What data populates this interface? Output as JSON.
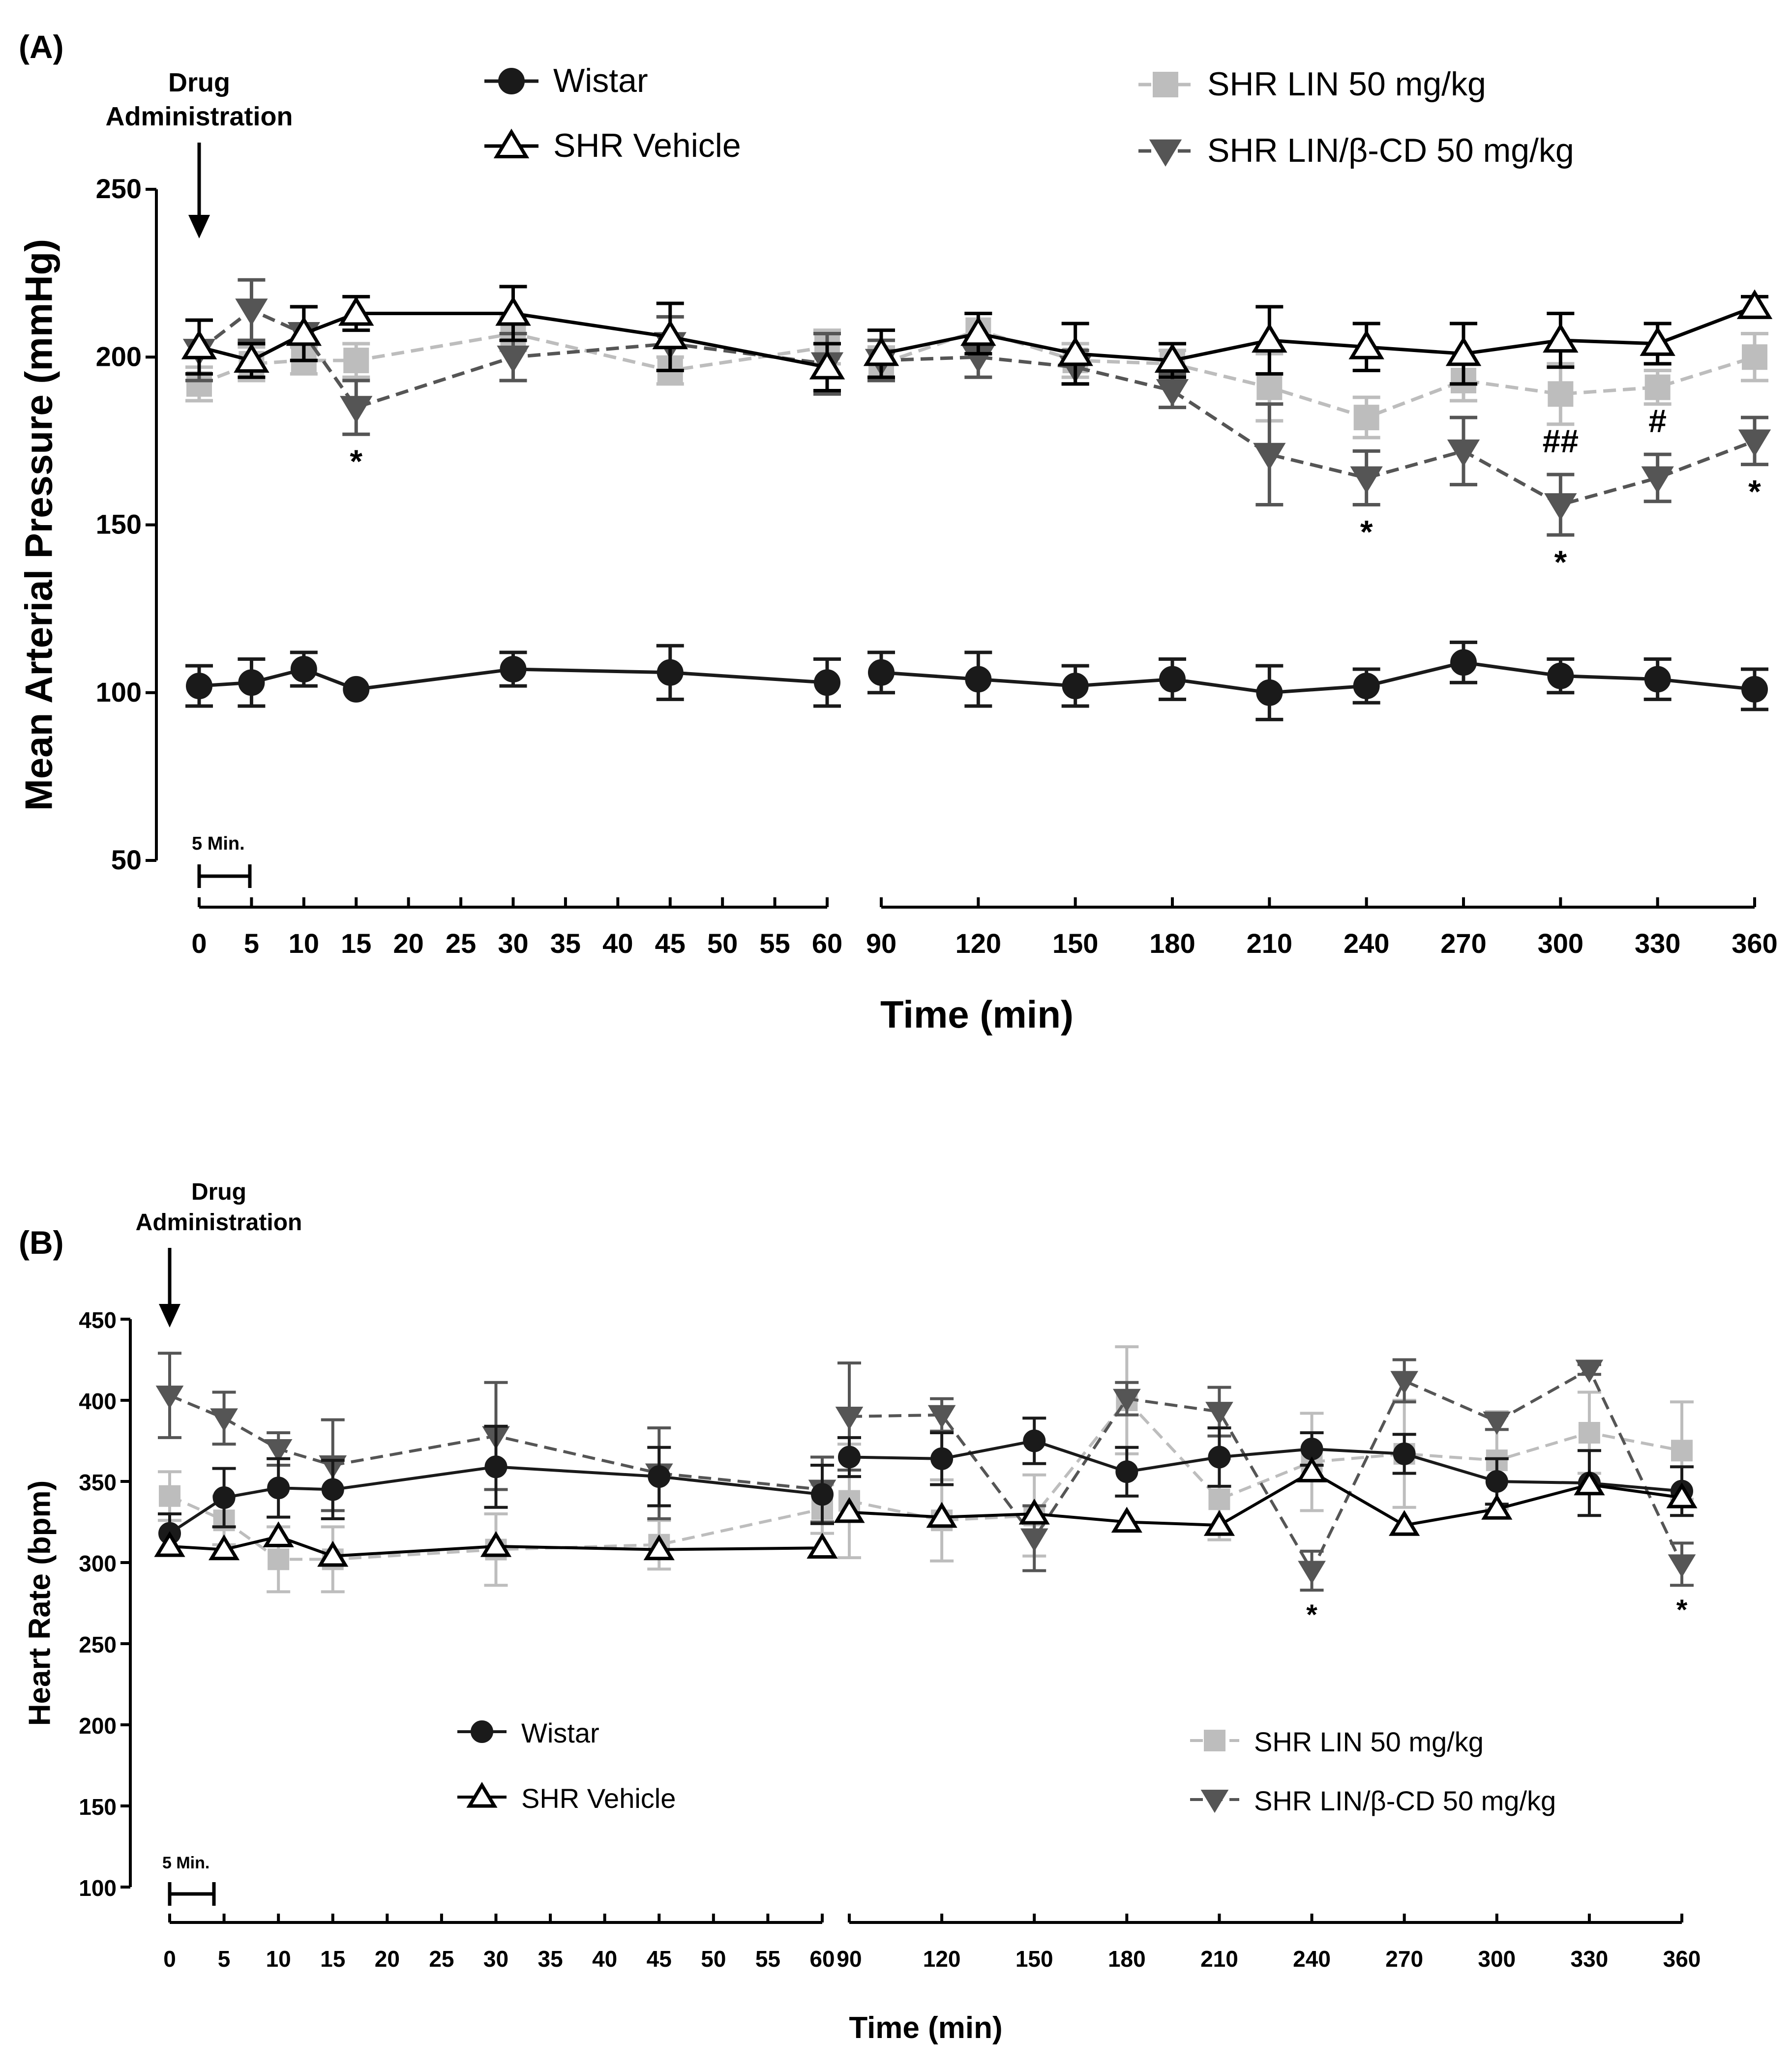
{
  "chart_data": [
    {
      "type": "line",
      "panel_label": "(A)",
      "annotation": [
        "Drug",
        "Administration"
      ],
      "ylabel": "Mean Arterial Pressure (mmHg)",
      "xlabel": "Time (min)",
      "ylim": [
        50,
        250
      ],
      "yticks": [
        "50",
        "100",
        "150",
        "200",
        "250"
      ],
      "scale_bar_label": "5 Min.",
      "x": [
        0,
        5,
        10,
        15,
        30,
        45,
        60,
        90,
        120,
        150,
        180,
        210,
        240,
        270,
        300,
        330,
        360
      ],
      "x_labels_seg1": [
        "0",
        "5",
        "10",
        "15",
        "20",
        "25",
        "30",
        "35",
        "40",
        "45",
        "50",
        "55",
        "60"
      ],
      "x_labels_seg2": [
        "90",
        "120",
        "150",
        "180",
        "210",
        "240",
        "270",
        "300",
        "330",
        "360"
      ],
      "series": [
        {
          "name": "Wistar",
          "color": "#1a1a1a",
          "marker": "circle",
          "dashed": false,
          "values": [
            102,
            103,
            107,
            101,
            107,
            106,
            103,
            106,
            104,
            102,
            104,
            100,
            102,
            109,
            105,
            104,
            101
          ],
          "errors": [
            6,
            7,
            5,
            0,
            5,
            8,
            7,
            6,
            8,
            6,
            6,
            8,
            5,
            6,
            5,
            6,
            6
          ]
        },
        {
          "name": "SHR Vehicle",
          "color": "#000000",
          "marker": "triangle-up-open",
          "dashed": false,
          "values": [
            203,
            199,
            207,
            213,
            213,
            206,
            197,
            201,
            207,
            201,
            199,
            205,
            203,
            201,
            205,
            204,
            215
          ],
          "errors": [
            8,
            5,
            8,
            5,
            8,
            10,
            7,
            7,
            6,
            9,
            5,
            10,
            7,
            9,
            8,
            6,
            3
          ]
        },
        {
          "name": "SHR LIN 50 mg/kg",
          "color": "#bdbdbd",
          "marker": "square",
          "dashed": true,
          "values": [
            192,
            198,
            199,
            199,
            207,
            196,
            203,
            198,
            208,
            199,
            198,
            191,
            182,
            193,
            189,
            191,
            200
          ],
          "errors": [
            5,
            5,
            4,
            5,
            5,
            4,
            5,
            5,
            5,
            5,
            4,
            10,
            6,
            6,
            9,
            5,
            7
          ]
        },
        {
          "name": "SHR LIN/β-CD 50 mg/kg",
          "color": "#555555",
          "marker": "triangle-down",
          "dashed": true,
          "values": [
            202,
            214,
            207,
            185,
            200,
            204,
            198,
            199,
            200,
            197,
            190,
            171,
            164,
            172,
            156,
            164,
            175
          ],
          "errors": [
            9,
            9,
            8,
            8,
            7,
            8,
            9,
            6,
            6,
            5,
            5,
            15,
            8,
            10,
            9,
            7,
            7
          ]
        }
      ],
      "significance": [
        {
          "series": 3,
          "index": 3,
          "label": "*",
          "pos": "below"
        },
        {
          "series": 3,
          "index": 12,
          "label": "*",
          "pos": "below"
        },
        {
          "series": 3,
          "index": 14,
          "label": "*",
          "pos": "below"
        },
        {
          "series": 3,
          "index": 14,
          "label": "##",
          "pos": "above"
        },
        {
          "series": 3,
          "index": 15,
          "label": "#",
          "pos": "above"
        },
        {
          "series": 3,
          "index": 16,
          "label": "*",
          "pos": "below"
        }
      ]
    },
    {
      "type": "line",
      "panel_label": "(B)",
      "annotation": [
        "Drug",
        "Administration"
      ],
      "ylabel": "Heart Rate (bpm)",
      "xlabel": "Time (min)",
      "ylim": [
        100,
        450
      ],
      "yticks": [
        "100",
        "150",
        "200",
        "250",
        "300",
        "350",
        "400",
        "450"
      ],
      "scale_bar_label": "5 Min.",
      "x": [
        0,
        5,
        10,
        15,
        30,
        45,
        60,
        90,
        120,
        150,
        180,
        210,
        240,
        270,
        300,
        330,
        360
      ],
      "x_labels_seg1": [
        "0",
        "5",
        "10",
        "15",
        "20",
        "25",
        "30",
        "35",
        "40",
        "45",
        "50",
        "55",
        "60"
      ],
      "x_labels_seg2": [
        "90",
        "120",
        "150",
        "180",
        "210",
        "240",
        "270",
        "300",
        "330",
        "360"
      ],
      "series": [
        {
          "name": "Wistar",
          "color": "#1a1a1a",
          "marker": "circle",
          "dashed": false,
          "values": [
            318,
            340,
            346,
            345,
            359,
            353,
            342,
            365,
            364,
            375,
            356,
            365,
            370,
            367,
            350,
            349,
            344
          ],
          "errors": [
            12,
            18,
            18,
            18,
            25,
            18,
            18,
            12,
            16,
            14,
            15,
            18,
            10,
            12,
            14,
            20,
            15
          ]
        },
        {
          "name": "SHR Vehicle",
          "color": "#000000",
          "marker": "triangle-up-open",
          "dashed": false,
          "values": [
            310,
            308,
            316,
            304,
            310,
            308,
            309,
            331,
            328,
            330,
            325,
            323,
            356,
            323,
            333,
            348,
            340
          ]
        },
        {
          "name": "SHR LIN 50 mg/kg",
          "color": "#bdbdbd",
          "marker": "square",
          "dashed": true,
          "values": [
            341,
            326,
            302,
            302,
            308,
            311,
            333,
            338,
            326,
            329,
            400,
            339,
            362,
            367,
            363,
            380,
            369
          ],
          "errors": [
            15,
            15,
            20,
            20,
            22,
            15,
            15,
            35,
            25,
            25,
            33,
            25,
            30,
            33,
            30,
            25,
            30
          ]
        },
        {
          "name": "SHR LIN/β-CD 50 mg/kg",
          "color": "#555555",
          "marker": "triangle-down",
          "dashed": true,
          "values": [
            403,
            389,
            370,
            360,
            378,
            355,
            345,
            390,
            391,
            315,
            401,
            393,
            295,
            412,
            387,
            419,
            299
          ],
          "errors": [
            26,
            16,
            10,
            28,
            33,
            28,
            20,
            33,
            10,
            20,
            10,
            15,
            12,
            13,
            5,
            3,
            13
          ]
        }
      ],
      "significance": [
        {
          "series": 3,
          "index": 12,
          "label": "*",
          "pos": "below"
        },
        {
          "series": 3,
          "index": 16,
          "label": "*",
          "pos": "below"
        }
      ]
    }
  ]
}
